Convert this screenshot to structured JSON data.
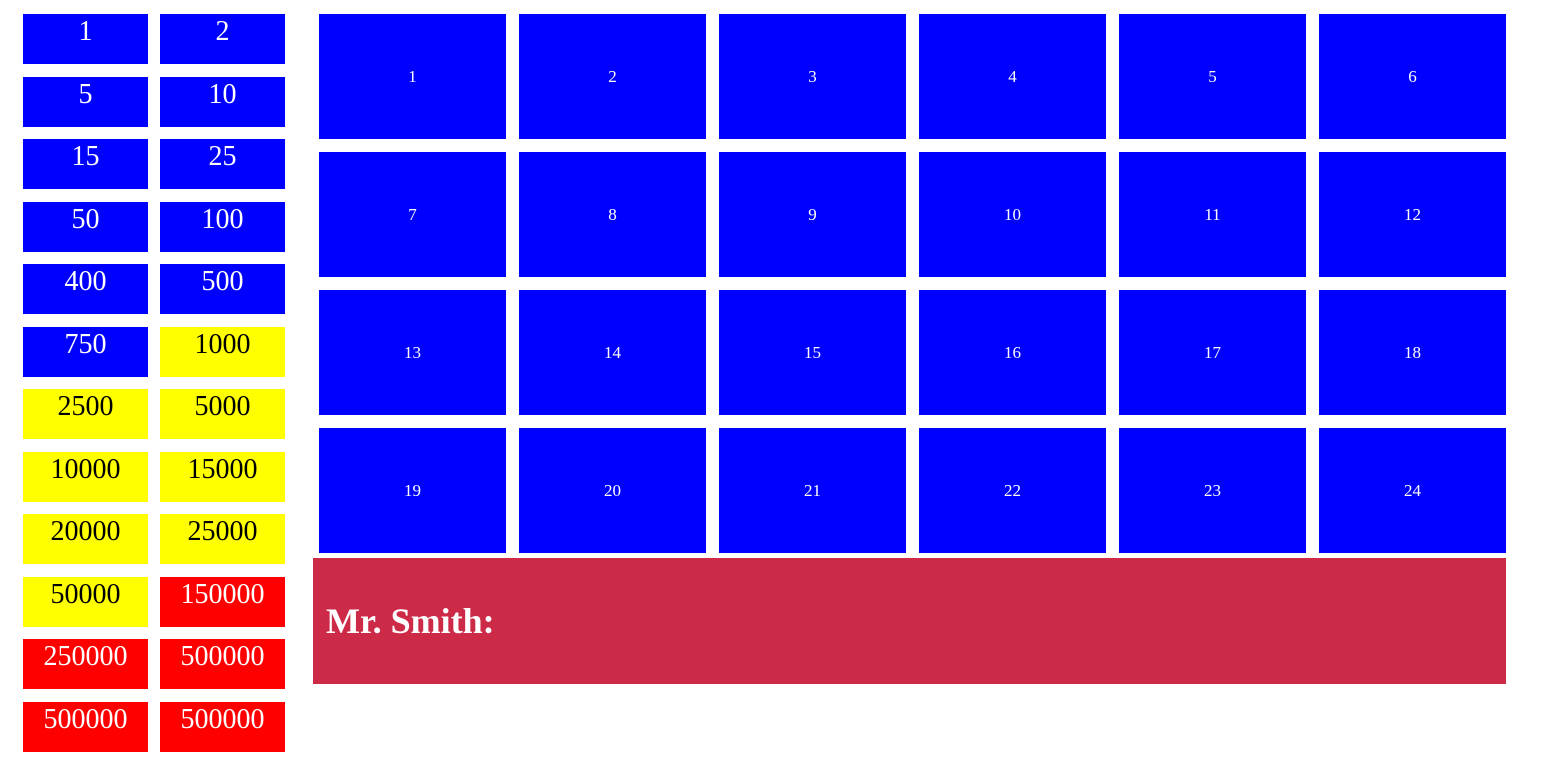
{
  "money_board": {
    "amounts": [
      {
        "label": "1",
        "color": "#0000ff"
      },
      {
        "label": "2",
        "color": "#0000ff"
      },
      {
        "label": "5",
        "color": "#0000ff"
      },
      {
        "label": "10",
        "color": "#0000ff"
      },
      {
        "label": "15",
        "color": "#0000ff"
      },
      {
        "label": "25",
        "color": "#0000ff"
      },
      {
        "label": "50",
        "color": "#0000ff"
      },
      {
        "label": "100",
        "color": "#0000ff"
      },
      {
        "label": "400",
        "color": "#0000ff"
      },
      {
        "label": "500",
        "color": "#0000ff"
      },
      {
        "label": "750",
        "color": "#0000ff"
      },
      {
        "label": "1000",
        "color": "#ffff00"
      },
      {
        "label": "2500",
        "color": "#ffff00"
      },
      {
        "label": "5000",
        "color": "#ffff00"
      },
      {
        "label": "10000",
        "color": "#ffff00"
      },
      {
        "label": "15000",
        "color": "#ffff00"
      },
      {
        "label": "20000",
        "color": "#ffff00"
      },
      {
        "label": "25000",
        "color": "#ffff00"
      },
      {
        "label": "50000",
        "color": "#ffff00"
      },
      {
        "label": "150000",
        "color": "#ff0000"
      },
      {
        "label": "250000",
        "color": "#ff0000"
      },
      {
        "label": "500000",
        "color": "#ff0000"
      },
      {
        "label": "500000",
        "color": "#ff0000"
      },
      {
        "label": "500000",
        "color": "#ff0000"
      }
    ]
  },
  "cases": {
    "items": [
      "1",
      "2",
      "3",
      "4",
      "5",
      "6",
      "7",
      "8",
      "9",
      "10",
      "11",
      "12",
      "13",
      "14",
      "15",
      "16",
      "17",
      "18",
      "19",
      "20",
      "21",
      "22",
      "23",
      "24"
    ],
    "color": "#0000ff"
  },
  "message": {
    "text": "Mr. Smith:",
    "background": "#cd2a48"
  }
}
